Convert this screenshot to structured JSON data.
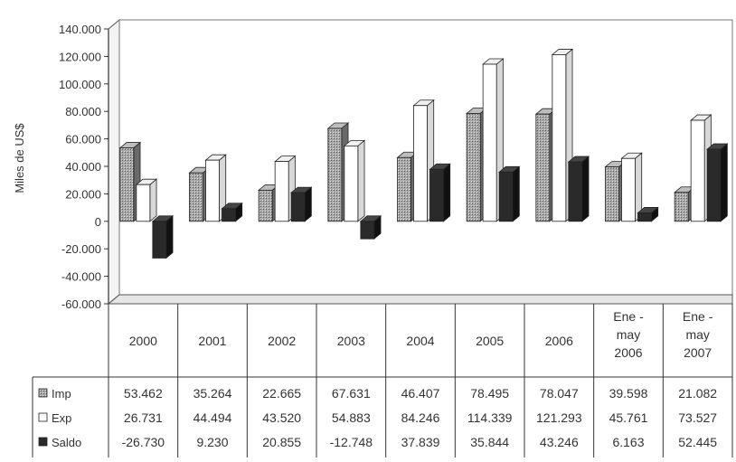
{
  "chart_data": {
    "type": "bar",
    "title": "",
    "xlabel": "",
    "ylabel": "Miles de US$",
    "ylim": [
      -60000,
      140000
    ],
    "y_ticks": [
      "140.000",
      "120.000",
      "100.000",
      "80.000",
      "60.000",
      "40.000",
      "20.000",
      "0",
      "-20.000",
      "-40.000",
      "-60.000"
    ],
    "y_tick_values": [
      140000,
      120000,
      100000,
      80000,
      60000,
      40000,
      20000,
      0,
      -20000,
      -40000,
      -60000
    ],
    "grid": false,
    "legend": "bottom-left (data table)",
    "categories": [
      [
        "2000"
      ],
      [
        "2001"
      ],
      [
        "2002"
      ],
      [
        "2003"
      ],
      [
        "2004"
      ],
      [
        "2005"
      ],
      [
        "2006"
      ],
      [
        "Ene -",
        "may",
        "2006"
      ],
      [
        "Ene -",
        "may",
        "2007"
      ]
    ],
    "series": [
      {
        "name": "Imp",
        "color": "#9a9a9a",
        "values": [
          53462,
          35264,
          22665,
          67631,
          46407,
          78495,
          78047,
          39598,
          21082
        ],
        "labels": [
          "53.462",
          "35.264",
          "22.665",
          "67.631",
          "46.407",
          "78.495",
          "78.047",
          "39.598",
          "21.082"
        ]
      },
      {
        "name": "Exp",
        "color": "#ffffff",
        "values": [
          26731,
          44494,
          43520,
          54883,
          84246,
          114339,
          121293,
          45761,
          73527
        ],
        "labels": [
          "26.731",
          "44.494",
          "43.520",
          "54.883",
          "84.246",
          "114.339",
          "121.293",
          "45.761",
          "73.527"
        ]
      },
      {
        "name": "Saldo",
        "color": "#2a2a2a",
        "values": [
          -26730,
          9230,
          20855,
          -12748,
          37839,
          35844,
          43246,
          6163,
          52445
        ],
        "labels": [
          "-26.730",
          "9.230",
          "20.855",
          "-12.748",
          "37.839",
          "35.844",
          "43.246",
          "6.163",
          "52.445"
        ]
      }
    ]
  }
}
